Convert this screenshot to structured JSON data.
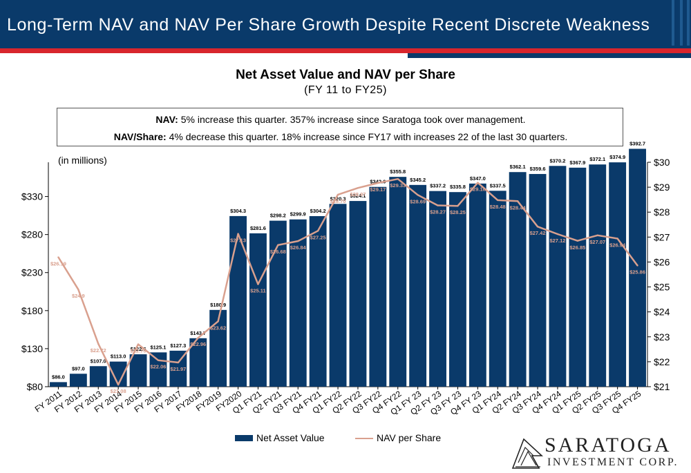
{
  "header": {
    "title": "Long-Term NAV and NAV Per Share Growth Despite Recent Discrete Weakness"
  },
  "note": {
    "line1_bold": "NAV:",
    "line1_text": " 5% increase this quarter. 357% increase since Saratoga took over management.",
    "line2_bold": "NAV/Share:",
    "line2_text": " 4% decrease this quarter. 18% increase since FY17 with increases 22 of the last 30 quarters."
  },
  "logo": {
    "name": "SARATOGA",
    "sub": "INVESTMENT CORP."
  },
  "colors": {
    "header_bg": "#0a3a6a",
    "accent_red": "#d8262d",
    "bar": "#0a3a6a",
    "line": "#d9a08e"
  },
  "chart_data": {
    "type": "bar+line",
    "title": "Net Asset Value and NAV per Share",
    "subtitle": "(FY 11 to FY25)",
    "units_label": "(in millions)",
    "categories": [
      "FY 2011",
      "FY 2012",
      "FY 2013",
      "FY 2014",
      "FY 2015",
      "FY 2016",
      "FY 2017",
      "FY2018",
      "FY2019",
      "FY2020",
      "Q1 FY21",
      "Q2 FY21",
      "Q3 FY21",
      "Q4 FY21",
      "Q1 FY22",
      "Q2 FY22",
      "Q3 FY22",
      "Q4 FY22",
      "Q1 FY 23",
      "Q2 FY 23",
      "Q3 FY 23",
      "Q4 FY 23",
      "Q1 FY24",
      "Q2 FY24",
      "Q3 FY24",
      "Q4 FY24",
      "Q1 FY25",
      "Q2 FY25",
      "Q3 FY25",
      "Q4 FY25"
    ],
    "series": [
      {
        "name": "Net Asset Value",
        "type": "bar",
        "axis": "left",
        "values": [
          86.0,
          97.0,
          107.0,
          113.0,
          122.6,
          125.1,
          127.3,
          143.7,
          180.9,
          304.3,
          281.6,
          298.2,
          299.9,
          304.2,
          320.3,
          324.1,
          342.6,
          355.8,
          345.2,
          337.2,
          335.8,
          347.0,
          337.5,
          362.1,
          359.6,
          370.2,
          367.9,
          372.1,
          374.9,
          392.7
        ],
        "labels": [
          "$86.0",
          "$97.0",
          "$107.0",
          "$113.0",
          "$122.6",
          "$125.1",
          "$127.3",
          "$143.7",
          "$180.9",
          "$304.3",
          "$281.6",
          "$298.2",
          "$299.9",
          "$304.2",
          "$320.3",
          "$324.1",
          "$342.6",
          "$355.8",
          "$345.2",
          "$337.2",
          "$335.8",
          "$347.0",
          "$337.5",
          "$362.1",
          "$359.6",
          "$370.2",
          "$367.9",
          "$372.1",
          "$374.9",
          "$392.7"
        ]
      },
      {
        "name": "NAV per Share",
        "type": "line",
        "axis": "right",
        "values": [
          26.19,
          24.9,
          22.72,
          21.08,
          22.7,
          22.06,
          21.97,
          22.96,
          23.62,
          27.13,
          25.11,
          26.68,
          26.84,
          27.25,
          28.7,
          28.97,
          29.17,
          29.33,
          28.69,
          28.27,
          28.25,
          29.18,
          28.48,
          28.44,
          27.42,
          27.12,
          26.85,
          27.07,
          26.94,
          25.86
        ],
        "labels": [
          "$26.19",
          "$24.9",
          "$22.72",
          "$21.08",
          "$22.70",
          "$22.06",
          "$21.97",
          "$22.96",
          "$23.62",
          "$27.13",
          "$25.11",
          "$26.68",
          "$26.84",
          "$27.25",
          "$28.70",
          "$28.97",
          "$29.17",
          "$29.33",
          "$28.69",
          "$28.27",
          "$28.25",
          "$29.18",
          "$28.48",
          "$28.44",
          "$27.42",
          "$27.12",
          "$26.85",
          "$27.07",
          "$26.94",
          "$25.86"
        ]
      }
    ],
    "left_axis": {
      "ylim": [
        80,
        375
      ],
      "ticks": [
        80,
        130,
        180,
        230,
        280,
        330
      ],
      "tick_labels": [
        "$80",
        "$130",
        "$180",
        "$230",
        "$280",
        "$330"
      ]
    },
    "right_axis": {
      "ylim": [
        21,
        30
      ],
      "ticks": [
        21,
        22,
        23,
        24,
        25,
        26,
        27,
        28,
        29,
        30
      ],
      "tick_labels": [
        "$21",
        "$22",
        "$23",
        "$24",
        "$25",
        "$26",
        "$27",
        "$28",
        "$29",
        "$30"
      ]
    },
    "grid": false,
    "legend_position": "bottom"
  }
}
